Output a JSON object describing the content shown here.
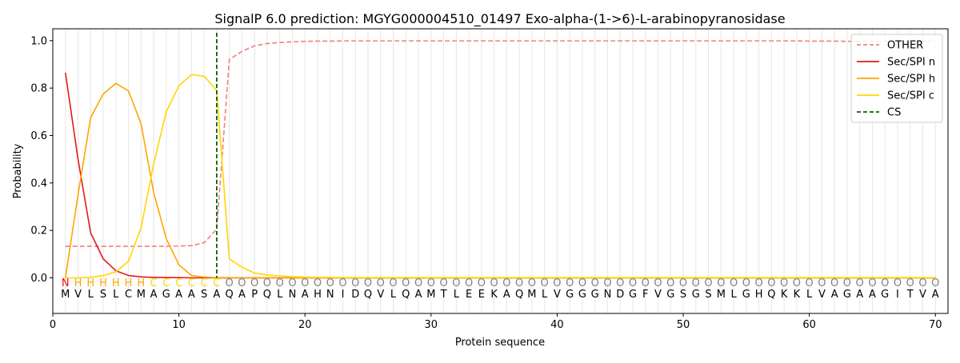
{
  "chart_data": {
    "type": "line",
    "title": "SignalP 6.0 prediction: MGYG000004510_01497 Exo-alpha-(1->6)-L-arabinopyranosidase",
    "xlabel": "Protein sequence",
    "ylabel": "Probability",
    "xlim": [
      0,
      71
    ],
    "ylim": [
      -0.15,
      1.05
    ],
    "x_ticks": [
      0,
      10,
      20,
      30,
      40,
      50,
      60,
      70
    ],
    "y_ticks": [
      0.0,
      0.2,
      0.4,
      0.6,
      0.8,
      1.0
    ],
    "grid": "vertical lines at each residue position",
    "legend_position": "top-right",
    "sequence": "MVLSLCMAGAASAQAPQLNAHNIDQVLQAMTLEEKAQMLVGGGNDGFVGSGSMLGHQKKLVAGAAGITVA",
    "region_labels": "NHHHHHHCCCCCCOOOOOOOOOOOOOOOOOOOOOOOOOOOOOOOOOOOOOOOOOOOOOOOOOOOOOOOOO",
    "region_label_colors": {
      "N": "#ff0000",
      "H": "#ffa500",
      "C": "#ffd700",
      "O": "#808080"
    },
    "cleavage_site": 13,
    "series": [
      {
        "name": "OTHER",
        "color": "#f08080",
        "style": "dashed",
        "values": [
          0.133,
          0.133,
          0.133,
          0.133,
          0.133,
          0.133,
          0.133,
          0.133,
          0.133,
          0.134,
          0.136,
          0.148,
          0.205,
          0.92,
          0.955,
          0.978,
          0.988,
          0.992,
          0.995,
          0.997,
          0.998,
          0.998,
          0.999,
          0.999,
          0.999,
          0.999,
          0.999,
          0.999,
          0.999,
          0.999,
          0.999,
          0.999,
          0.999,
          0.999,
          0.999,
          0.999,
          0.999,
          0.999,
          0.999,
          0.999,
          0.999,
          0.999,
          0.999,
          0.999,
          0.999,
          0.999,
          0.999,
          0.999,
          0.999,
          0.999,
          0.999,
          0.999,
          0.999,
          0.999,
          0.999,
          0.999,
          0.999,
          0.999,
          0.999,
          0.998,
          0.998,
          0.998,
          0.997,
          0.997,
          0.997,
          0.997,
          0.997,
          0.997,
          0.997,
          0.997
        ]
      },
      {
        "name": "Sec/SPI n",
        "color": "#e31a1c",
        "style": "solid",
        "values": [
          0.865,
          0.5,
          0.19,
          0.08,
          0.03,
          0.01,
          0.004,
          0.002,
          0.001,
          0.001,
          0,
          0,
          0,
          0,
          0,
          0,
          0,
          0,
          0,
          0,
          0,
          0,
          0,
          0,
          0,
          0,
          0,
          0,
          0,
          0,
          0,
          0,
          0,
          0,
          0,
          0,
          0,
          0,
          0,
          0,
          0,
          0,
          0,
          0,
          0,
          0,
          0,
          0,
          0,
          0,
          0,
          0,
          0,
          0,
          0,
          0,
          0,
          0,
          0,
          0,
          0,
          0,
          0,
          0,
          0,
          0,
          0,
          0,
          0,
          0
        ]
      },
      {
        "name": "Sec/SPI h",
        "color": "#ffa500",
        "style": "solid",
        "values": [
          0.0,
          0.35,
          0.675,
          0.775,
          0.82,
          0.788,
          0.65,
          0.36,
          0.165,
          0.055,
          0.01,
          0.003,
          0.001,
          0.001,
          0,
          0,
          0,
          0,
          0,
          0,
          0,
          0,
          0,
          0,
          0,
          0,
          0,
          0,
          0,
          0,
          0,
          0,
          0,
          0,
          0,
          0,
          0,
          0,
          0,
          0,
          0,
          0,
          0,
          0,
          0,
          0,
          0,
          0,
          0,
          0,
          0,
          0,
          0,
          0,
          0,
          0,
          0,
          0,
          0,
          0,
          0,
          0,
          0,
          0,
          0,
          0,
          0,
          0,
          0,
          0
        ]
      },
      {
        "name": "Sec/SPI c",
        "color": "#ffd700",
        "style": "solid",
        "values": [
          0.0,
          0.0,
          0.002,
          0.01,
          0.025,
          0.07,
          0.21,
          0.48,
          0.7,
          0.81,
          0.857,
          0.85,
          0.79,
          0.08,
          0.045,
          0.02,
          0.012,
          0.008,
          0.005,
          0.003,
          0.002,
          0.002,
          0.001,
          0.001,
          0.001,
          0.001,
          0.001,
          0.001,
          0.001,
          0.001,
          0.001,
          0.001,
          0.001,
          0.001,
          0.001,
          0.001,
          0.001,
          0.001,
          0.001,
          0.001,
          0.001,
          0.001,
          0.001,
          0.001,
          0.001,
          0.001,
          0.001,
          0.001,
          0.001,
          0.001,
          0.001,
          0.001,
          0.001,
          0.001,
          0.001,
          0.001,
          0.001,
          0.001,
          0.001,
          0.001,
          0.001,
          0.001,
          0.001,
          0.001,
          0.001,
          0.001,
          0.001,
          0.001,
          0.001,
          0.001
        ]
      }
    ],
    "legend": [
      {
        "label": "OTHER",
        "color": "#f08080",
        "style": "dashed"
      },
      {
        "label": "Sec/SPI n",
        "color": "#e31a1c",
        "style": "solid"
      },
      {
        "label": "Sec/SPI h",
        "color": "#ffa500",
        "style": "solid"
      },
      {
        "label": "Sec/SPI c",
        "color": "#ffd700",
        "style": "solid"
      },
      {
        "label": "CS",
        "color": "#006400",
        "style": "dashed"
      }
    ]
  }
}
